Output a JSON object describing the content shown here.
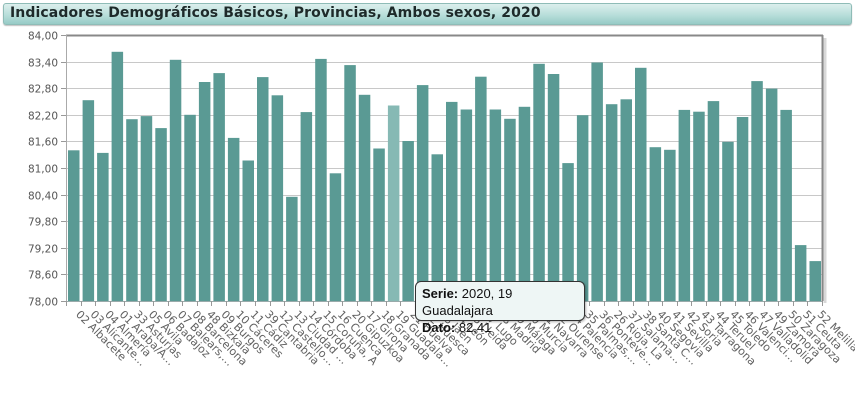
{
  "header": {
    "title": "Indicadores Demográficos Básicos, Provincias, Ambos sexos, 2020"
  },
  "colors": {
    "bar": "#5a9a94",
    "bar_highlight": "#86b9b4",
    "grid": "#c8c8c8",
    "axis": "#999999"
  },
  "tooltip": {
    "serie_label": "Serie:",
    "serie_value": "2020, 19 Guadalajara",
    "dato_label": "Dato:",
    "dato_value": "82,41"
  },
  "chart_data": {
    "type": "bar",
    "title": "Indicadores Demográficos Básicos, Provincias, Ambos sexos, 2020",
    "xlabel": "",
    "ylabel": "",
    "ylim": [
      78.0,
      84.0
    ],
    "yticks": [
      "78,00",
      "78,60",
      "79,20",
      "79,80",
      "80,40",
      "81,00",
      "81,60",
      "82,20",
      "82,80",
      "83,40",
      "84,00"
    ],
    "grid": true,
    "legend": "none",
    "highlighted_index": 22,
    "categories": [
      "02 Albacete",
      "03 Alicante…",
      "04 Almería",
      "01 Araba/Á…",
      "33 Asturias",
      "05 Ávila",
      "06 Badajoz",
      "07 Balears,…",
      "08 Barcelona",
      "48 Bizkaia",
      "09 Burgos",
      "10 Cáceres",
      "11 Cádiz",
      "39 Cantabria",
      "12 Castello…",
      "13 Ciudad …",
      "14 Córdoba",
      "15 Coruña, A",
      "16 Cuenca",
      "20 Gipuzkoa",
      "17 Girona",
      "18 Granada",
      "19 Guadala…",
      "21 Huelva",
      "22 Huesca",
      "23 Jaén",
      "24 León",
      "25 Lleida",
      "27 Lugo",
      "28 Madrid",
      "29 Málaga",
      "30 Murcia",
      "31 Navarra",
      "32 Ourense",
      "34 Palencia",
      "35 Palmas,…",
      "36 Ponteve…",
      "26 Rioja, La",
      "37 Salama…",
      "38 Santa C…",
      "40 Segovia",
      "41 Sevilla",
      "42 Soria",
      "43 Tarragona",
      "44 Teruel",
      "45 Toledo",
      "46 Valenci…",
      "47 Valladolid",
      "49 Zamora",
      "50 Zaragoza",
      "51 Ceuta",
      "52 Melilla"
    ],
    "series": [
      {
        "name": "2020",
        "values": [
          81.4,
          82.53,
          81.34,
          83.62,
          82.1,
          82.17,
          81.9,
          83.44,
          82.2,
          82.94,
          83.14,
          81.68,
          81.17,
          83.05,
          82.64,
          80.35,
          82.26,
          83.46,
          80.88,
          83.32,
          82.65,
          81.44,
          82.41,
          81.61,
          82.87,
          81.31,
          82.49,
          82.32,
          83.06,
          82.32,
          82.11,
          82.38,
          83.35,
          83.12,
          81.11,
          82.19,
          83.38,
          82.44,
          82.55,
          83.26,
          81.47,
          81.41,
          82.31,
          82.27,
          82.51,
          81.59,
          82.15,
          82.96,
          82.79,
          82.31,
          79.26,
          78.9
        ]
      }
    ]
  }
}
